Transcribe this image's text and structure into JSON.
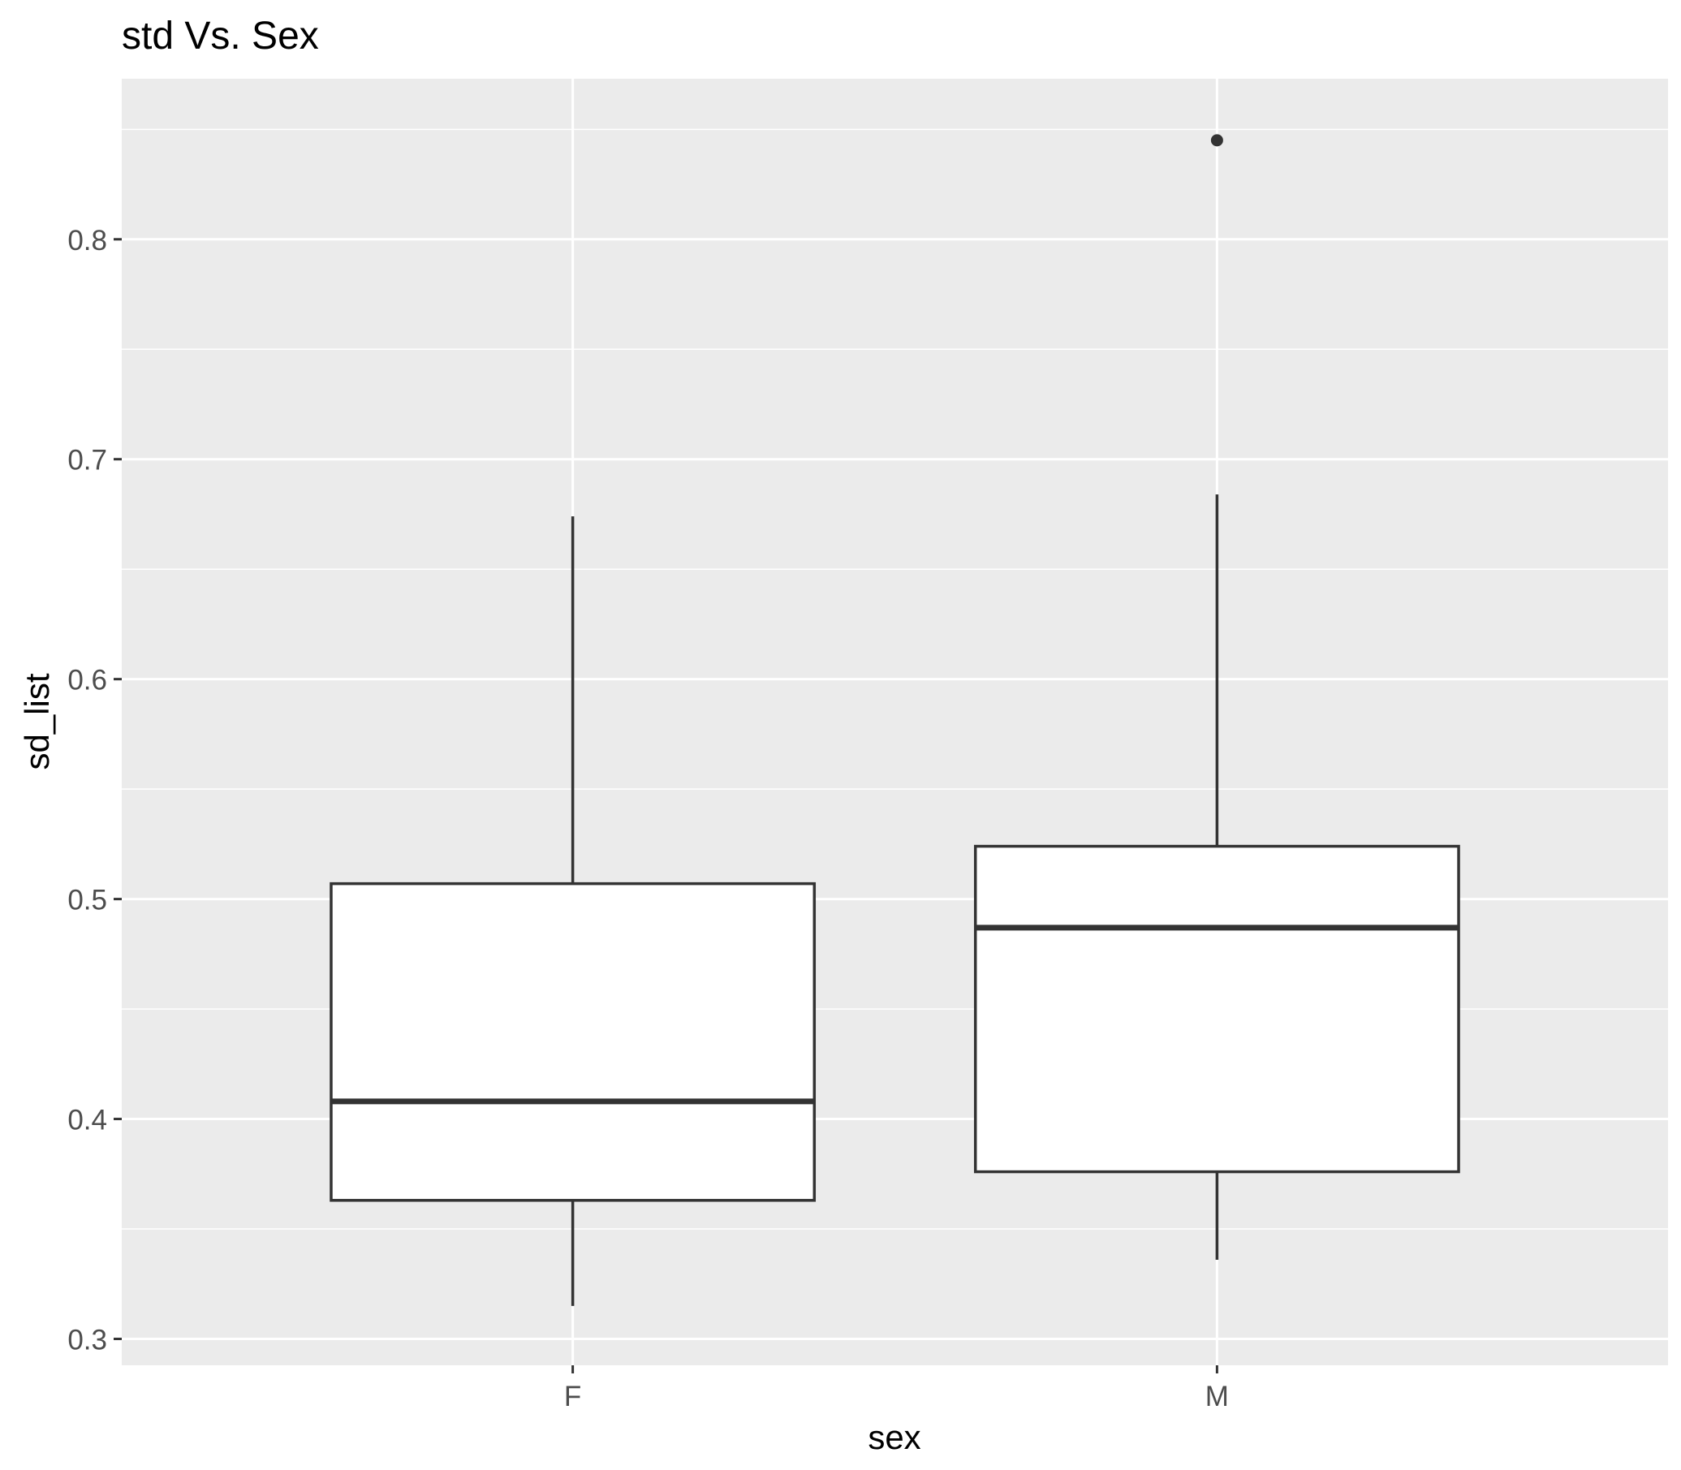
{
  "chart_data": {
    "type": "boxplot",
    "title": "std Vs. Sex",
    "xlabel": "sex",
    "ylabel": "sd_list",
    "categories": [
      "F",
      "M"
    ],
    "ylim": [
      0.288,
      0.873
    ],
    "yticks": [
      0.3,
      0.4,
      0.5,
      0.6,
      0.7,
      0.8
    ],
    "ytick_labels": [
      "0.3",
      "0.4",
      "0.5",
      "0.6",
      "0.7",
      "0.8"
    ],
    "grid": true,
    "boxes": [
      {
        "category": "F",
        "whisker_low": 0.315,
        "q1": 0.363,
        "median": 0.408,
        "q3": 0.507,
        "whisker_high": 0.674,
        "outliers": []
      },
      {
        "category": "M",
        "whisker_low": 0.336,
        "q1": 0.376,
        "median": 0.487,
        "q3": 0.524,
        "whisker_high": 0.684,
        "outliers": [
          0.845
        ]
      }
    ],
    "colors": {
      "panel": "#EBEBEB",
      "grid": "#FFFFFF",
      "box_fill": "#FFFFFF",
      "box_line": "#333333",
      "axis_text": "#4D4D4D"
    }
  }
}
